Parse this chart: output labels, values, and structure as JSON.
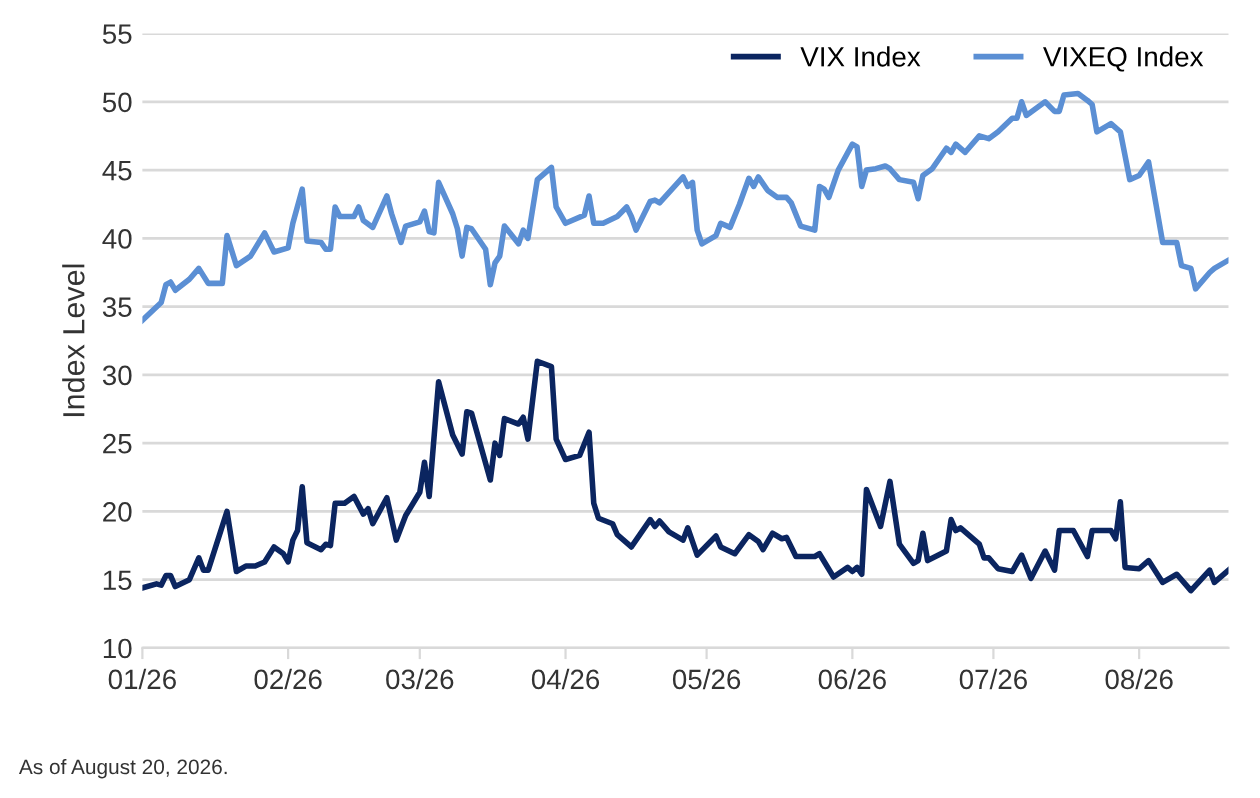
{
  "chart_data": {
    "type": "line",
    "ylabel": "Index Level",
    "xlim": [
      "2026-01-01",
      "2026-08-20"
    ],
    "xticks": [
      {
        "value": "2026-01-01",
        "label": "01/26"
      },
      {
        "value": "2026-02-01",
        "label": "02/26"
      },
      {
        "value": "2026-03-01",
        "label": "03/26"
      },
      {
        "value": "2026-04-01",
        "label": "04/26"
      },
      {
        "value": "2026-05-01",
        "label": "05/26"
      },
      {
        "value": "2026-06-01",
        "label": "06/26"
      },
      {
        "value": "2026-07-01",
        "label": "07/26"
      },
      {
        "value": "2026-08-01",
        "label": "08/26"
      }
    ],
    "ylim": [
      10,
      55
    ],
    "yticks": [
      10,
      15,
      20,
      25,
      30,
      35,
      40,
      45,
      50,
      55
    ],
    "grid": "y",
    "legend": "top right",
    "marker": "none",
    "line_style": "solid",
    "annotations": [
      "As of August 20, 2026."
    ],
    "series": [
      {
        "name": "VIX Index",
        "color": "#0b2560",
        "x": [
          "2026-01-01",
          "2026-01-04",
          "2026-01-05",
          "2026-01-06",
          "2026-01-07",
          "2026-01-08",
          "2026-01-11",
          "2026-01-13",
          "2026-01-14",
          "2026-01-15",
          "2026-01-19",
          "2026-01-21",
          "2026-01-23",
          "2026-01-25",
          "2026-01-27",
          "2026-01-29",
          "2026-01-31",
          "2026-02-01",
          "2026-02-02",
          "2026-02-03",
          "2026-02-04",
          "2026-02-05",
          "2026-02-08",
          "2026-02-09",
          "2026-02-10",
          "2026-02-11",
          "2026-02-13",
          "2026-02-15",
          "2026-02-17",
          "2026-02-18",
          "2026-02-19",
          "2026-02-22",
          "2026-02-24",
          "2026-02-26",
          "2026-03-01",
          "2026-03-02",
          "2026-03-03",
          "2026-03-05",
          "2026-03-08",
          "2026-03-10",
          "2026-03-11",
          "2026-03-12",
          "2026-03-16",
          "2026-03-17",
          "2026-03-18",
          "2026-03-19",
          "2026-03-22",
          "2026-03-23",
          "2026-03-24",
          "2026-03-26",
          "2026-03-29",
          "2026-03-30",
          "2026-04-01",
          "2026-04-04",
          "2026-04-06",
          "2026-04-07",
          "2026-04-08",
          "2026-04-11",
          "2026-04-12",
          "2026-04-15",
          "2026-04-19",
          "2026-04-20",
          "2026-04-21",
          "2026-04-23",
          "2026-04-26",
          "2026-04-27",
          "2026-04-29",
          "2026-05-03",
          "2026-05-04",
          "2026-05-07",
          "2026-05-10",
          "2026-05-12",
          "2026-05-13",
          "2026-05-15",
          "2026-05-17",
          "2026-05-18",
          "2026-05-20",
          "2026-05-24",
          "2026-05-25",
          "2026-05-28",
          "2026-05-31",
          "2026-06-01",
          "2026-06-02",
          "2026-06-03",
          "2026-06-04",
          "2026-06-07",
          "2026-06-09",
          "2026-06-11",
          "2026-06-14",
          "2026-06-15",
          "2026-06-16",
          "2026-06-17",
          "2026-06-21",
          "2026-06-22",
          "2026-06-23",
          "2026-06-24",
          "2026-06-28",
          "2026-06-29",
          "2026-06-30",
          "2026-07-02",
          "2026-07-05",
          "2026-07-07",
          "2026-07-09",
          "2026-07-12",
          "2026-07-14",
          "2026-07-15",
          "2026-07-18",
          "2026-07-21",
          "2026-07-22",
          "2026-07-26",
          "2026-07-27",
          "2026-07-28",
          "2026-07-29",
          "2026-08-01",
          "2026-08-03",
          "2026-08-06",
          "2026-08-09",
          "2026-08-11",
          "2026-08-12",
          "2026-08-16",
          "2026-08-17",
          "2026-08-20"
        ],
        "values": [
          14.4,
          14.7,
          14.6,
          15.3,
          15.3,
          14.5,
          15.0,
          16.6,
          15.7,
          15.7,
          20.0,
          15.6,
          16.0,
          16.0,
          16.3,
          17.4,
          16.9,
          16.3,
          17.9,
          18.6,
          21.8,
          17.7,
          17.2,
          17.6,
          17.5,
          20.6,
          20.6,
          21.1,
          19.8,
          20.2,
          19.1,
          21.0,
          17.9,
          19.7,
          21.4,
          23.6,
          21.1,
          29.5,
          25.6,
          24.2,
          27.3,
          27.2,
          22.3,
          25.0,
          24.1,
          26.8,
          26.4,
          26.9,
          25.3,
          31.0,
          30.6,
          25.3,
          23.8,
          24.1,
          25.8,
          20.6,
          19.5,
          19.1,
          18.3,
          17.4,
          19.4,
          18.9,
          19.3,
          18.5,
          17.9,
          18.8,
          16.8,
          18.2,
          17.4,
          16.9,
          18.3,
          17.8,
          17.2,
          18.4,
          18.0,
          18.1,
          16.7,
          16.7,
          16.9,
          15.2,
          15.9,
          15.6,
          15.9,
          15.4,
          21.6,
          18.9,
          22.2,
          17.6,
          16.2,
          16.4,
          18.4,
          16.4,
          17.1,
          19.4,
          18.6,
          18.8,
          17.6,
          16.6,
          16.6,
          15.8,
          15.6,
          16.8,
          15.1,
          17.1,
          15.7,
          18.6,
          18.6,
          16.7,
          18.6,
          18.6,
          18.0,
          20.7,
          15.9,
          15.8,
          16.4,
          14.8,
          15.4,
          14.6,
          14.2,
          15.7,
          14.8,
          15.7
        ]
      },
      {
        "name": "VIXEQ Index",
        "color": "#5b8fd4",
        "x": [
          "2026-01-01",
          "2026-01-05",
          "2026-01-06",
          "2026-01-07",
          "2026-01-08",
          "2026-01-11",
          "2026-01-13",
          "2026-01-15",
          "2026-01-18",
          "2026-01-19",
          "2026-01-21",
          "2026-01-24",
          "2026-01-27",
          "2026-01-29",
          "2026-02-01",
          "2026-02-02",
          "2026-02-04",
          "2026-02-05",
          "2026-02-08",
          "2026-02-09",
          "2026-02-10",
          "2026-02-11",
          "2026-02-12",
          "2026-02-15",
          "2026-02-16",
          "2026-02-17",
          "2026-02-19",
          "2026-02-22",
          "2026-02-23",
          "2026-02-25",
          "2026-02-26",
          "2026-03-01",
          "2026-03-02",
          "2026-03-03",
          "2026-03-04",
          "2026-03-05",
          "2026-03-08",
          "2026-03-09",
          "2026-03-10",
          "2026-03-11",
          "2026-03-12",
          "2026-03-15",
          "2026-03-16",
          "2026-03-17",
          "2026-03-18",
          "2026-03-19",
          "2026-03-22",
          "2026-03-23",
          "2026-03-24",
          "2026-03-26",
          "2026-03-29",
          "2026-03-30",
          "2026-04-01",
          "2026-04-05",
          "2026-04-06",
          "2026-04-07",
          "2026-04-09",
          "2026-04-12",
          "2026-04-14",
          "2026-04-15",
          "2026-04-16",
          "2026-04-19",
          "2026-04-20",
          "2026-04-21",
          "2026-04-26",
          "2026-04-27",
          "2026-04-28",
          "2026-04-29",
          "2026-04-30",
          "2026-05-03",
          "2026-05-04",
          "2026-05-06",
          "2026-05-08",
          "2026-05-10",
          "2026-05-11",
          "2026-05-12",
          "2026-05-14",
          "2026-05-16",
          "2026-05-18",
          "2026-05-19",
          "2026-05-21",
          "2026-05-24",
          "2026-05-25",
          "2026-05-26",
          "2026-05-27",
          "2026-05-29",
          "2026-06-01",
          "2026-06-02",
          "2026-06-03",
          "2026-06-04",
          "2026-06-06",
          "2026-06-08",
          "2026-06-09",
          "2026-06-11",
          "2026-06-14",
          "2026-06-15",
          "2026-06-16",
          "2026-06-18",
          "2026-06-21",
          "2026-06-22",
          "2026-06-23",
          "2026-06-25",
          "2026-06-28",
          "2026-06-30",
          "2026-07-02",
          "2026-07-05",
          "2026-07-06",
          "2026-07-07",
          "2026-07-08",
          "2026-07-12",
          "2026-07-14",
          "2026-07-15",
          "2026-07-16",
          "2026-07-19",
          "2026-07-21",
          "2026-07-22",
          "2026-07-23",
          "2026-07-26",
          "2026-07-28",
          "2026-07-30",
          "2026-08-01",
          "2026-08-03",
          "2026-08-06",
          "2026-08-09",
          "2026-08-10",
          "2026-08-12",
          "2026-08-13",
          "2026-08-16",
          "2026-08-17",
          "2026-08-20"
        ],
        "values": [
          34.0,
          35.3,
          36.6,
          36.8,
          36.2,
          37.0,
          37.8,
          36.7,
          36.7,
          40.2,
          38.0,
          38.7,
          40.4,
          39.0,
          39.3,
          41.1,
          43.6,
          39.8,
          39.7,
          39.2,
          39.2,
          42.3,
          41.6,
          41.6,
          42.3,
          41.3,
          40.8,
          43.1,
          41.8,
          39.7,
          40.9,
          41.2,
          42.0,
          40.5,
          40.4,
          44.1,
          41.8,
          40.7,
          38.7,
          40.8,
          40.7,
          39.2,
          36.6,
          38.2,
          38.7,
          40.9,
          39.6,
          40.6,
          40.0,
          44.3,
          45.2,
          42.3,
          41.1,
          41.7,
          43.1,
          41.1,
          41.1,
          41.6,
          42.3,
          41.6,
          40.6,
          42.7,
          42.8,
          42.6,
          44.5,
          43.8,
          44.1,
          40.6,
          39.6,
          40.2,
          41.1,
          40.8,
          42.5,
          44.4,
          43.8,
          44.5,
          43.5,
          43.0,
          43.0,
          42.6,
          40.9,
          40.6,
          43.8,
          43.6,
          43.0,
          45.0,
          46.9,
          46.7,
          43.8,
          45.0,
          45.1,
          45.3,
          45.1,
          44.3,
          44.1,
          42.9,
          44.6,
          45.1,
          46.6,
          46.3,
          46.9,
          46.3,
          47.5,
          47.3,
          47.8,
          48.8,
          48.8,
          50.0,
          49.0,
          50.0,
          49.3,
          49.3,
          50.5,
          50.6,
          50.1,
          49.8,
          47.8,
          48.4,
          47.8,
          44.3,
          44.6,
          45.6,
          39.7,
          39.7,
          38.0,
          37.8,
          36.3,
          37.5,
          37.8,
          38.4
        ]
      }
    ]
  }
}
